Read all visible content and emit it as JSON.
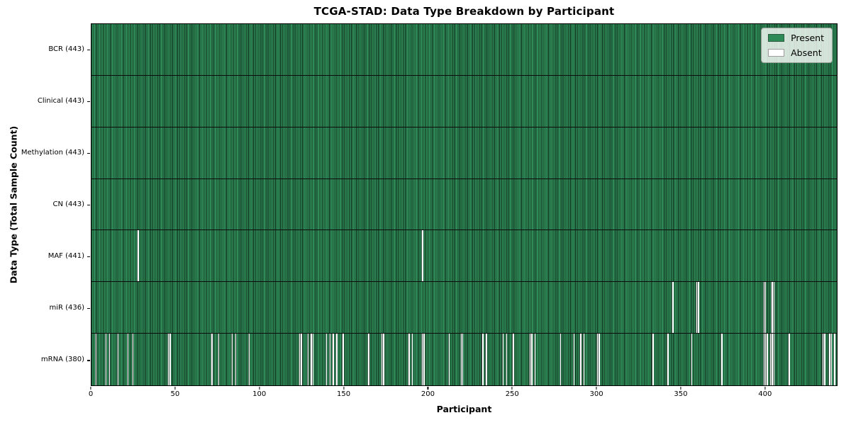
{
  "chart_data": {
    "type": "heatmap",
    "title": "TCGA-STAD: Data Type Breakdown by Participant",
    "xlabel": "Participant",
    "ylabel": "Data Type (Total Sample Count)",
    "n_participants": 443,
    "xlim": [
      0,
      443
    ],
    "x_ticks": [
      0,
      50,
      100,
      150,
      200,
      250,
      300,
      350,
      400
    ],
    "grid": false,
    "legend_position": "upper right",
    "cell_states": [
      "present",
      "absent"
    ],
    "colors": {
      "present": "#2E8B57",
      "absent": "#FFFFFF",
      "edge": "#0E2A1A",
      "figure_bg": "#FFFFFF"
    },
    "legend": [
      {
        "label": "Present",
        "color": "#2E8B57"
      },
      {
        "label": "Absent",
        "color": "#FFFFFF"
      }
    ],
    "rows": [
      {
        "name": "bcr",
        "label": "BCR (443)",
        "data_type": "BCR",
        "present_count": 443,
        "absent_participants": []
      },
      {
        "name": "clinical",
        "label": "Clinical (443)",
        "data_type": "Clinical",
        "present_count": 443,
        "absent_participants": []
      },
      {
        "name": "methylation",
        "label": "Methylation (443)",
        "data_type": "Methylation",
        "present_count": 443,
        "absent_participants": []
      },
      {
        "name": "cn",
        "label": "CN (443)",
        "data_type": "CN",
        "present_count": 443,
        "absent_participants": []
      },
      {
        "name": "maf",
        "label": "MAF (441)",
        "data_type": "MAF",
        "present_count": 441,
        "absent_participants": [
          27,
          196
        ]
      },
      {
        "name": "mir",
        "label": "miR (436)",
        "data_type": "miR",
        "present_count": 436,
        "absent_participants": [
          345,
          359,
          360,
          399,
          400,
          404,
          405
        ]
      },
      {
        "name": "mrna",
        "label": "mRNA (380)",
        "data_type": "mRNA",
        "present_count": 380,
        "absent_participants": [
          2,
          8,
          10,
          15,
          21,
          24,
          45,
          46,
          71,
          75,
          83,
          85,
          93,
          123,
          124,
          128,
          130,
          131,
          139,
          141,
          143,
          145,
          149,
          164,
          172,
          173,
          188,
          190,
          196,
          197,
          212,
          219,
          220,
          232,
          234,
          244,
          246,
          250,
          260,
          261,
          263,
          278,
          286,
          290,
          292,
          300,
          301,
          333,
          342,
          356,
          374,
          399,
          400,
          401,
          403,
          404,
          405,
          414,
          434,
          435,
          438,
          439,
          441
        ]
      }
    ]
  }
}
